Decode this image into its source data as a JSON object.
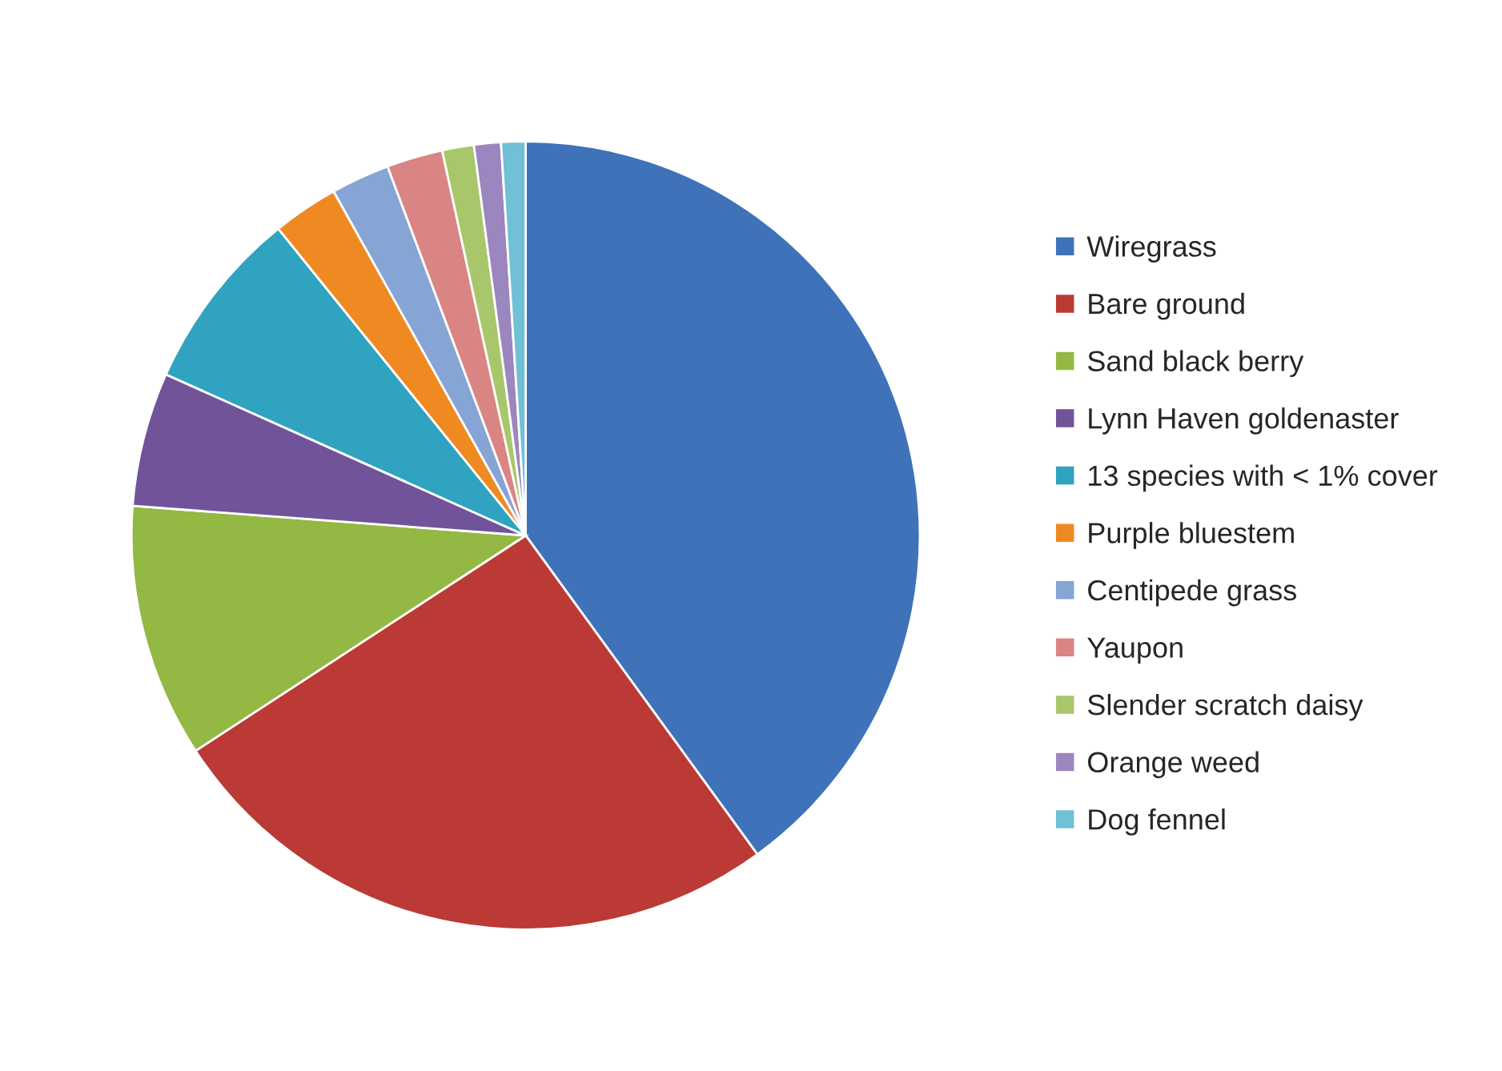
{
  "chart_data": {
    "type": "pie",
    "categories": [
      "Wiregrass",
      "Bare ground",
      "Sand black berry",
      "Lynn Haven goldenaster",
      "13 species with < 1% cover",
      "Purple bluestem",
      "Centipede grass",
      "Yaupon",
      "Slender scratch daisy",
      "Orange weed",
      "Dog fennel"
    ],
    "values": [
      40,
      25.8,
      10.4,
      5.5,
      7.5,
      2.7,
      2.4,
      2.3,
      1.3,
      1.1,
      1.0
    ],
    "colors": [
      "#3f72b8",
      "#bb3a36",
      "#93b844",
      "#71539a",
      "#2fa3bf",
      "#ef8a22",
      "#86a4d4",
      "#d98583",
      "#a8c76a",
      "#9c86c0",
      "#70c0d6"
    ],
    "legend": "right"
  }
}
